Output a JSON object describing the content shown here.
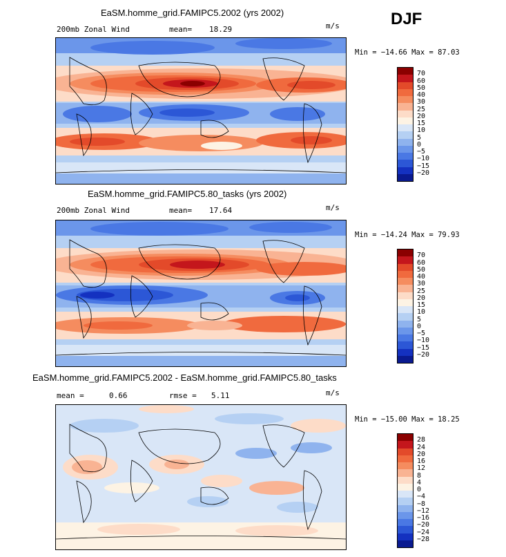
{
  "season": "DJF",
  "panels": [
    {
      "title": "EaSM.homme_grid.FAMIPC5.2002 (yrs 2002)",
      "left_label": "200mb Zonal Wind",
      "stat1_label": "mean=",
      "stat1_value": "18.29",
      "stat2_label": "",
      "stat2_value": "",
      "units": "m/s",
      "min_max": "Min = −14.66 Max =  87.03",
      "colorbar": {
        "colors": [
          "#8b0000",
          "#c4161c",
          "#e34a2a",
          "#f06a3e",
          "#f58c5f",
          "#f9b393",
          "#fddcc8",
          "#fdf3e4",
          "#d9e6f7",
          "#b5d0f3",
          "#8fb3ee",
          "#6b96ea",
          "#4a78e4",
          "#2c57d6",
          "#1431c0",
          "#0a1a90"
        ],
        "labels": [
          "70",
          "60",
          "50",
          "40",
          "30",
          "25",
          "20",
          "15",
          "10",
          "5",
          "0",
          "−5",
          "−10",
          "−15",
          "−20"
        ]
      }
    },
    {
      "title": "EaSM.homme_grid.FAMIPC5.80_tasks (yrs 2002)",
      "left_label": "200mb Zonal Wind",
      "stat1_label": "mean=",
      "stat1_value": "17.64",
      "stat2_label": "",
      "stat2_value": "",
      "units": "m/s",
      "min_max": "Min = −14.24 Max =  79.93",
      "colorbar": {
        "colors": [
          "#8b0000",
          "#c4161c",
          "#e34a2a",
          "#f06a3e",
          "#f58c5f",
          "#f9b393",
          "#fddcc8",
          "#fdf3e4",
          "#d9e6f7",
          "#b5d0f3",
          "#8fb3ee",
          "#6b96ea",
          "#4a78e4",
          "#2c57d6",
          "#1431c0",
          "#0a1a90"
        ],
        "labels": [
          "70",
          "60",
          "50",
          "40",
          "30",
          "25",
          "20",
          "15",
          "10",
          "5",
          "0",
          "−5",
          "−10",
          "−15",
          "−20"
        ]
      }
    },
    {
      "title": "EaSM.homme_grid.FAMIPC5.2002 - EaSM.homme_grid.FAMIPC5.80_tasks",
      "left_label": "",
      "stat1_label": "mean =",
      "stat1_value": "0.66",
      "stat2_label": "rmse =",
      "stat2_value": "5.11",
      "units": "m/s",
      "min_max": "Min = −15.00 Max =  18.25",
      "colorbar": {
        "colors": [
          "#8b0000",
          "#c4161c",
          "#e34a2a",
          "#f06a3e",
          "#f58c5f",
          "#f9b393",
          "#fddcc8",
          "#fdf3e4",
          "#d9e6f7",
          "#b5d0f3",
          "#8fb3ee",
          "#6b96ea",
          "#4a78e4",
          "#2c57d6",
          "#1431c0",
          "#0a1a90"
        ],
        "labels": [
          "28",
          "24",
          "20",
          "16",
          "12",
          "8",
          "4",
          "0",
          "−4",
          "−8",
          "−12",
          "−16",
          "−20",
          "−24",
          "−28"
        ]
      }
    }
  ]
}
